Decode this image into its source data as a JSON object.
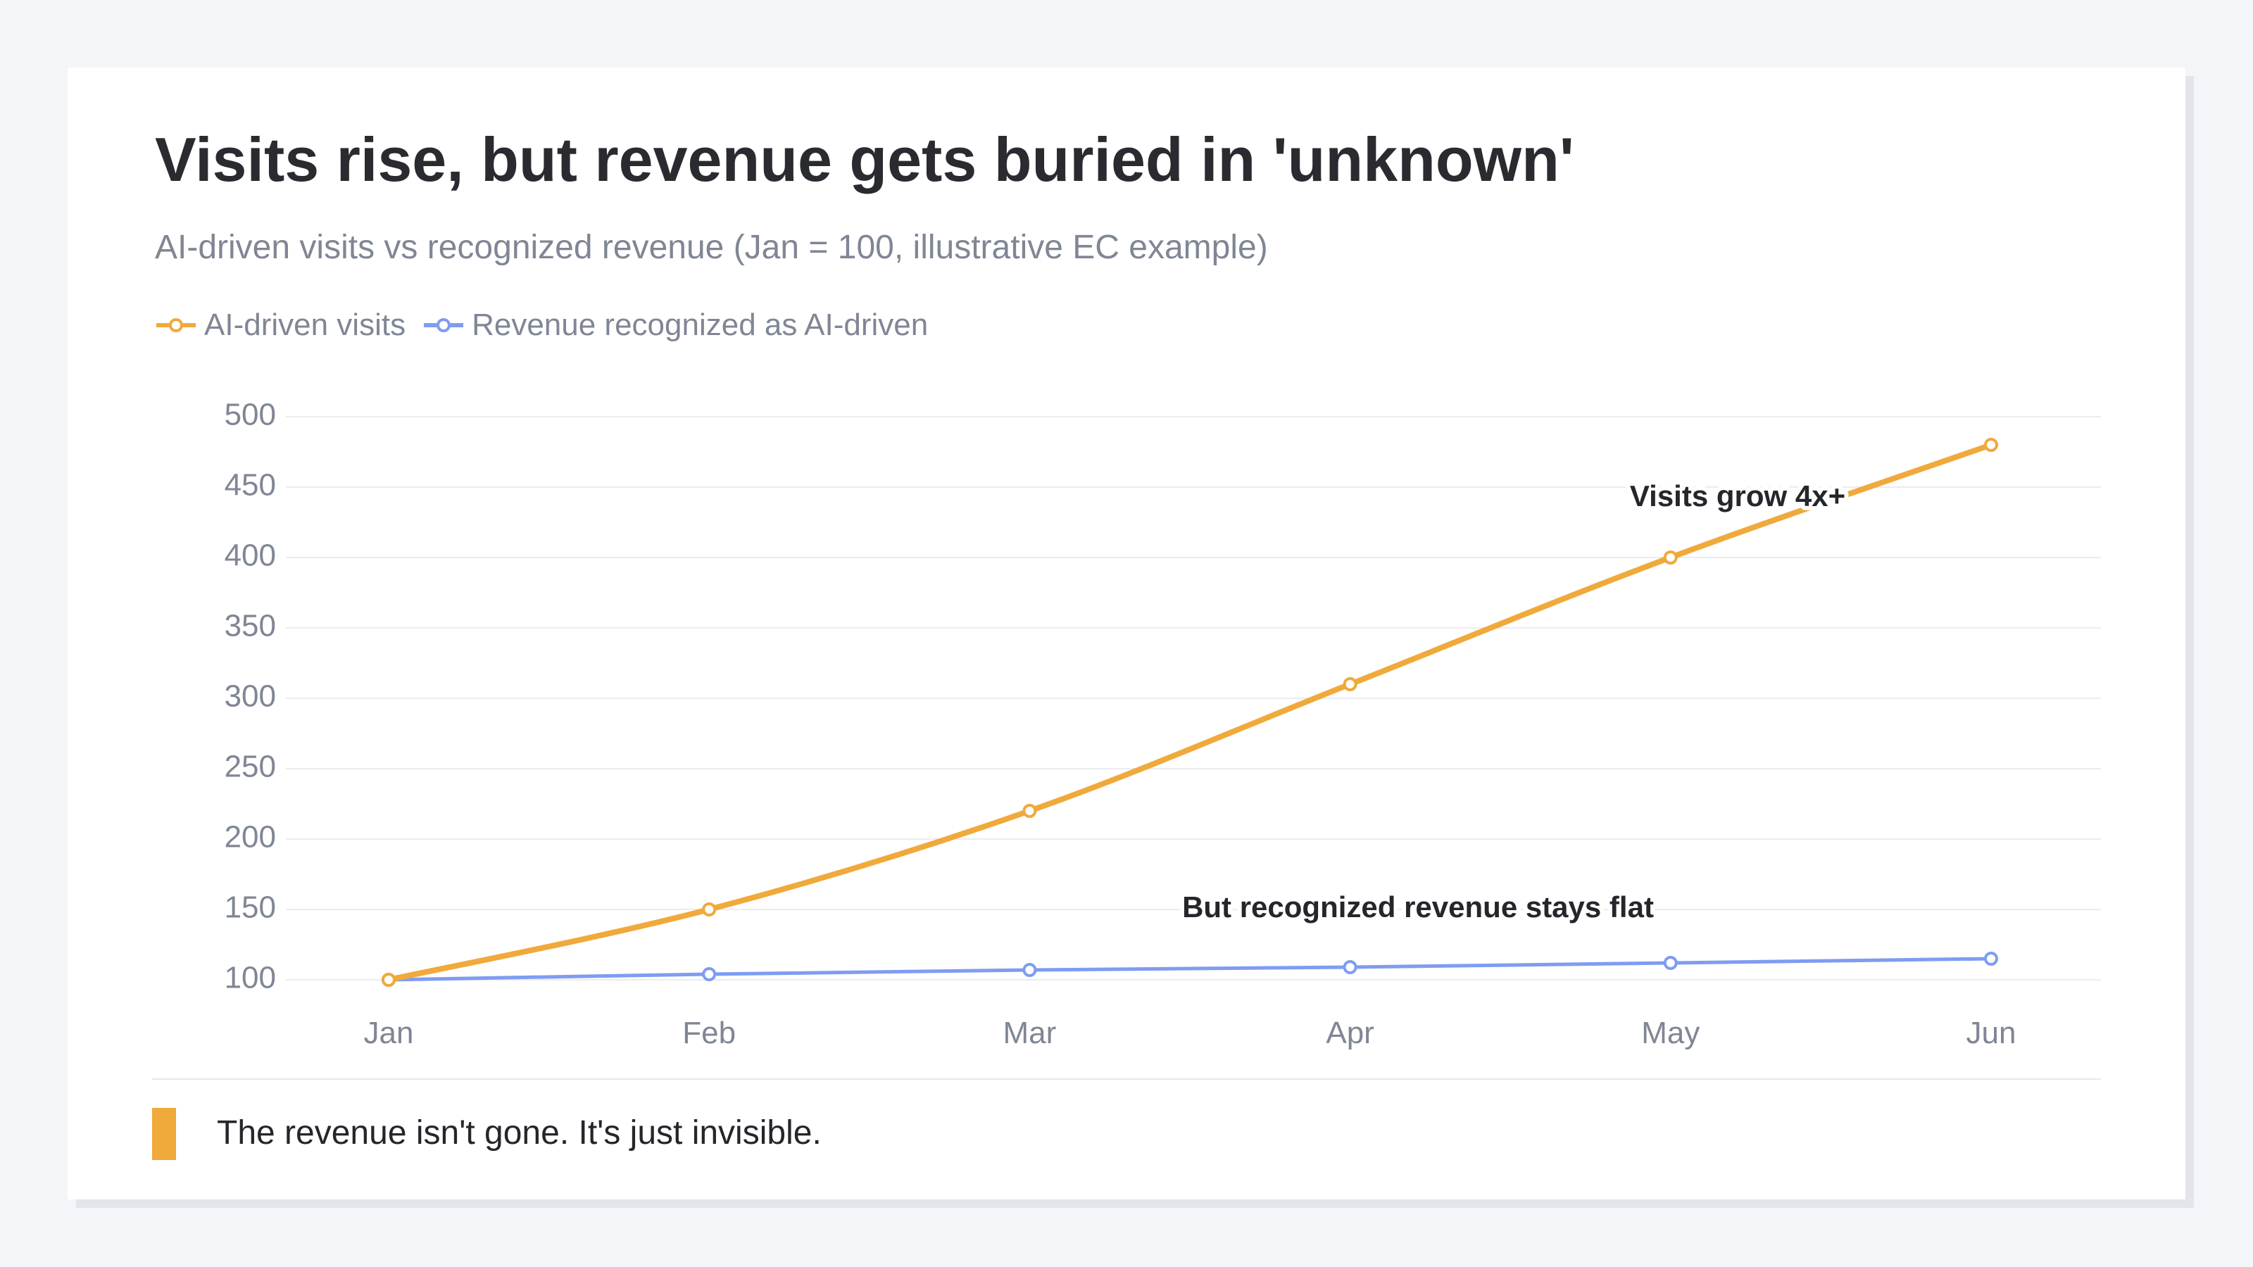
{
  "card": {
    "title": "Visits rise, but revenue gets buried in 'unknown'",
    "subtitle": "AI-driven visits vs recognized revenue (Jan = 100, illustrative EC example)",
    "footer_text": "The revenue isn't gone. It's just invisible."
  },
  "colors": {
    "visits": "#f0a93b",
    "revenue": "#7f9cf2",
    "accent": "#f0a93b",
    "grid": "#ececf0",
    "tick_text": "#7f8694",
    "annotation_text": "#24262b"
  },
  "chart_data": {
    "type": "line",
    "title": "Visits rise, but revenue gets buried in 'unknown'",
    "subtitle": "AI-driven visits vs recognized revenue (Jan = 100, illustrative EC example)",
    "categories": [
      "Jan",
      "Feb",
      "Mar",
      "Apr",
      "May",
      "Jun"
    ],
    "series": [
      {
        "name": "AI-driven visits",
        "values": [
          100,
          150,
          220,
          310,
          400,
          480
        ],
        "color": "#f0a93b"
      },
      {
        "name": "Revenue recognized as AI-driven",
        "values": [
          100,
          104,
          107,
          109,
          112,
          115
        ],
        "color": "#7f9cf2"
      }
    ],
    "ylim": [
      100,
      500
    ],
    "yticks": [
      100,
      150,
      200,
      250,
      300,
      350,
      400,
      450,
      500
    ],
    "grid": true,
    "legend_position": "top-left",
    "xlabel": "",
    "ylabel": "",
    "annotations": [
      {
        "text": "Visits grow 4x+",
        "x": "May",
        "y": 442
      },
      {
        "text": "But recognized revenue stays flat",
        "x": "Apr",
        "y": 150
      }
    ]
  }
}
